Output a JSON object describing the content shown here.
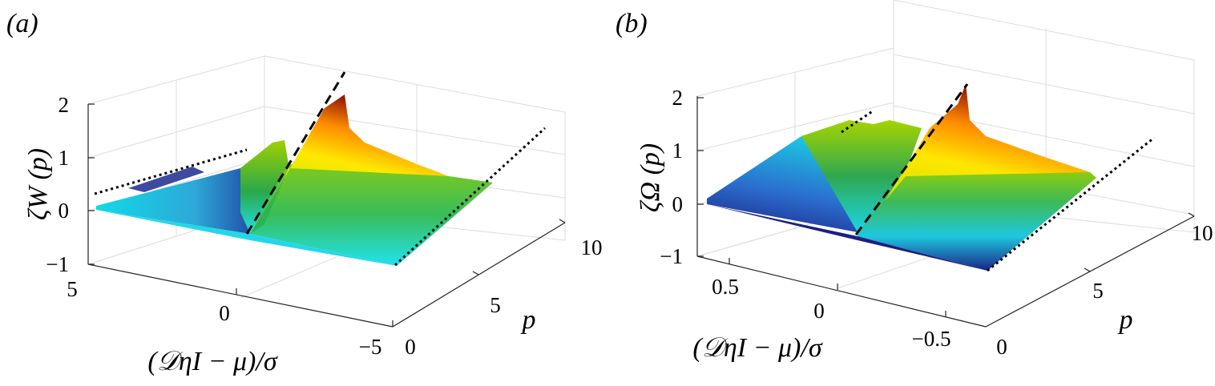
{
  "panels": [
    {
      "id": "a",
      "panel_label": "(a)",
      "zlabel": "ζW (p)",
      "xlabel": "(𝒟ηI − μ)/σ",
      "plabel": "p",
      "ztick_labels": [
        "2",
        "1",
        "0",
        "−1"
      ],
      "xtick_labels": [
        "5",
        "0",
        "−5"
      ],
      "ptick_labels": [
        "10",
        "5",
        "0"
      ]
    },
    {
      "id": "b",
      "panel_label": "(b)",
      "zlabel": "ζΩ (p)",
      "xlabel": "(𝒟ηI − μ)/σ",
      "plabel": "p",
      "ztick_labels": [
        "2",
        "1",
        "0",
        "−1"
      ],
      "xtick_labels": [
        "0.5",
        "0",
        "−0.5"
      ],
      "ptick_labels": [
        "10",
        "5",
        "0"
      ]
    }
  ],
  "chart_data": [
    {
      "type": "surface",
      "panel": "a",
      "title": "",
      "xlabel": "(𝒟ηI − μ)/σ",
      "ylabel": "p",
      "zlabel": "ζW (p)",
      "xlim": [
        5,
        -5
      ],
      "ylim": [
        0,
        10
      ],
      "zlim": [
        -1,
        2
      ],
      "x": [
        5,
        2.5,
        0.5,
        0,
        -0.5,
        -2.5,
        -5
      ],
      "p": [
        0,
        2,
        4,
        6,
        8,
        10
      ],
      "z": [
        [
          0,
          0,
          0,
          0,
          0,
          0,
          0
        ],
        [
          0.12,
          0.18,
          0.35,
          0.5,
          0.35,
          0.3,
          0.28
        ],
        [
          0.25,
          0.35,
          0.7,
          1.0,
          0.7,
          0.55,
          0.48
        ],
        [
          0.37,
          0.52,
          1.05,
          1.5,
          1.0,
          0.72,
          0.6
        ],
        [
          0.48,
          0.68,
          1.4,
          2.0,
          1.25,
          0.83,
          0.67
        ],
        [
          0.58,
          0.82,
          1.75,
          2.5,
          1.45,
          0.9,
          0.7
        ]
      ],
      "colormap": [
        "#1b1f8a",
        "#2a6bd1",
        "#00e5ee",
        "#1fae3a",
        "#ffee00",
        "#ff8a00",
        "#8a0a00"
      ],
      "reference_lines": [
        {
          "style": "dotted",
          "x": 5,
          "p": [
            0,
            10
          ],
          "z": [
            0,
            0.6
          ]
        },
        {
          "style": "dashed",
          "x": 0,
          "p": [
            0,
            10
          ],
          "z": [
            -0.2,
            3.6
          ]
        },
        {
          "style": "dotted",
          "x": -5,
          "p": [
            0,
            10
          ],
          "z": [
            -1,
            0.9
          ]
        }
      ],
      "grid": true
    },
    {
      "type": "surface",
      "panel": "b",
      "title": "",
      "xlabel": "(𝒟ηI − μ)/σ",
      "ylabel": "p",
      "zlabel": "ζΩ (p)",
      "xlim": [
        0.8,
        -0.8
      ],
      "ylim": [
        0,
        10
      ],
      "zlim": [
        -1,
        2
      ],
      "x": [
        0.8,
        0.5,
        0.2,
        0,
        -0.2,
        -0.5,
        -0.8
      ],
      "p": [
        0,
        2,
        4,
        6,
        8,
        10
      ],
      "z": [
        [
          0,
          0,
          0,
          0,
          0,
          0,
          0
        ],
        [
          0.1,
          0.22,
          0.28,
          0.4,
          0.3,
          0.25,
          0.22
        ],
        [
          0.2,
          0.45,
          0.55,
          0.8,
          0.6,
          0.5,
          0.42
        ],
        [
          0.3,
          0.68,
          0.85,
          1.2,
          0.88,
          0.7,
          0.58
        ],
        [
          0.4,
          0.9,
          1.12,
          1.6,
          1.1,
          0.85,
          0.68
        ],
        [
          0.5,
          1.1,
          1.4,
          2.0,
          1.3,
          0.95,
          0.73
        ]
      ],
      "colormap": [
        "#1b1f8a",
        "#2a6bd1",
        "#00e5ee",
        "#1fae3a",
        "#ffee00",
        "#ff8a00",
        "#8a0a00"
      ],
      "reference_lines": [
        {
          "style": "dotted",
          "x": 0.8,
          "p": [
            0,
            10
          ],
          "z": [
            0,
            1.6
          ]
        },
        {
          "style": "dashed",
          "x": 0,
          "p": [
            0,
            10
          ],
          "z": [
            -0.8,
            3.5
          ]
        },
        {
          "style": "dotted",
          "x": -0.8,
          "p": [
            0,
            10
          ],
          "z": [
            -1,
            0.8
          ]
        }
      ],
      "grid": true
    }
  ]
}
